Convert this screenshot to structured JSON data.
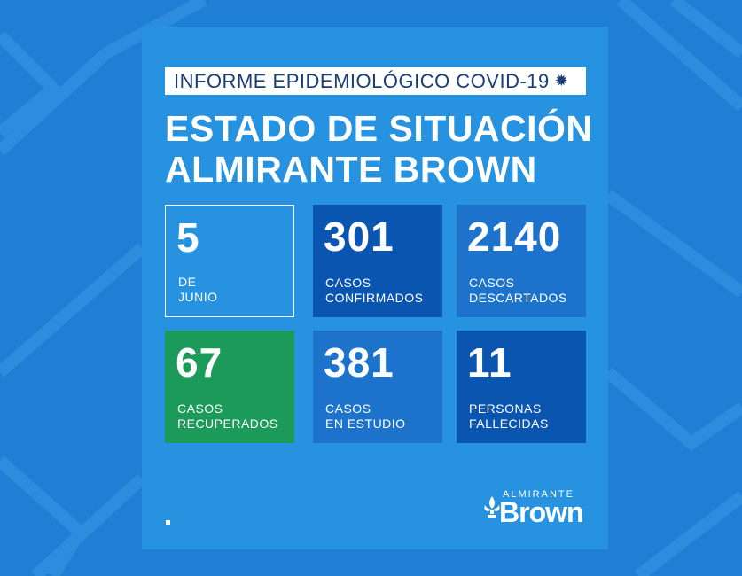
{
  "header": {
    "label": "INFORME EPIDEMIOLÓGICO COVID-19",
    "icon": "virus-icon"
  },
  "title": {
    "line1": "ESTADO DE SITUACIÓN",
    "line2": "ALMIRANTE BROWN"
  },
  "cards": [
    {
      "value": "5",
      "label1": "DE",
      "label2": "JUNIO"
    },
    {
      "value": "301",
      "label1": "CASOS",
      "label2": "CONFIRMADOS"
    },
    {
      "value": "2140",
      "label1": "CASOS",
      "label2": "DESCARTADOS"
    },
    {
      "value": "67",
      "label1": "CASOS",
      "label2": "RECUPERADOS"
    },
    {
      "value": "381",
      "label1": "CASOS",
      "label2": "EN ESTUDIO"
    },
    {
      "value": "11",
      "label1": "PERSONAS",
      "label2": "FALLECIDAS"
    }
  ],
  "logo": {
    "small": "ALMIRANTE",
    "big": "Brown"
  },
  "colors": {
    "background": "#1e7fd4",
    "panel": "#2792e0",
    "dark_blue": "#0a55b0",
    "mid_blue": "#1d73cc",
    "green": "#1c9a59",
    "header_text": "#1b3e73"
  }
}
